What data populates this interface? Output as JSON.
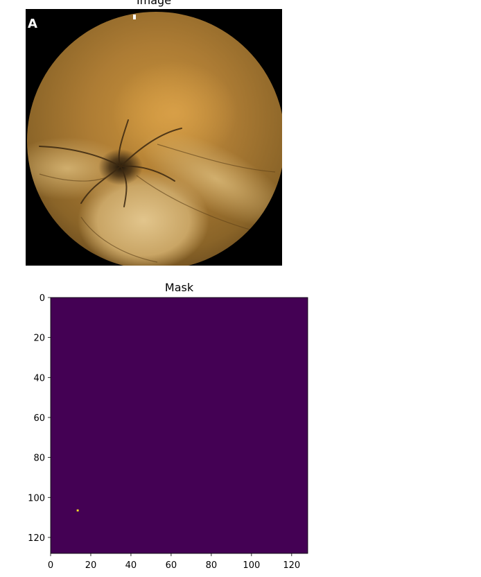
{
  "panels": {
    "image_title": "Image",
    "image_corner_letter": "A",
    "mask_title": "Mask"
  },
  "colors": {
    "mask_background": "#440154",
    "mask_foreground": "#fde725"
  },
  "chart_data": {
    "type": "heatmap",
    "title": "Mask",
    "xlabel": "",
    "ylabel": "",
    "xlim": [
      0,
      128
    ],
    "ylim": [
      128,
      0
    ],
    "grid": false,
    "x_ticks": [
      0,
      20,
      40,
      60,
      80,
      100,
      120
    ],
    "y_ticks": [
      0,
      20,
      40,
      60,
      80,
      100,
      120
    ],
    "colormap": "viridis",
    "background_value": 0,
    "foreground_pixels": [
      {
        "x": 13,
        "y": 106,
        "value": 1
      }
    ]
  }
}
